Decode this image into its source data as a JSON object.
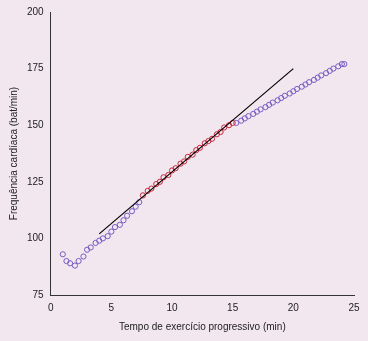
{
  "chart_data": {
    "type": "scatter",
    "x_label": "Tempo de exercício progressivo (min)",
    "y_label": "Frequência cardíaca (bat/min)",
    "xlim": [
      0,
      25
    ],
    "xticks": [
      0,
      5,
      10,
      15,
      20,
      25
    ],
    "ylim": [
      75,
      200
    ],
    "yticks": [
      75,
      100,
      125,
      150,
      175,
      200
    ],
    "grid": false,
    "series": [
      {
        "color": "#7a5cc4",
        "marker": "circle_open",
        "x": [
          1,
          1.3,
          1.6,
          2,
          2.3,
          2.7,
          3,
          3.3,
          3.7,
          4,
          4.3,
          4.7,
          5,
          5.3,
          5.7,
          6,
          6.3,
          6.7,
          7,
          7.3
        ],
        "values": [
          93,
          90,
          89,
          88,
          90,
          92,
          95,
          96,
          98,
          99,
          100,
          101,
          103,
          105,
          106,
          108,
          110,
          112,
          114,
          116
        ]
      },
      {
        "color": "#c8283c",
        "marker": "circle_open",
        "x": [
          7.6,
          8,
          8.3,
          8.7,
          9,
          9.3,
          9.7,
          10,
          10.3,
          10.7,
          11,
          11.3,
          11.7,
          12,
          12.3,
          12.7,
          13,
          13.3,
          13.7,
          14,
          14.3,
          14.7,
          15
        ],
        "values": [
          119,
          121,
          122,
          124,
          125,
          127,
          128,
          130,
          131,
          133,
          134,
          136,
          137,
          139,
          140,
          142,
          143,
          144,
          146,
          147,
          149,
          150,
          151
        ]
      },
      {
        "color": "#7a5cc4",
        "marker": "circle_open",
        "x": [
          15.3,
          15.7,
          16,
          16.3,
          16.7,
          17,
          17.3,
          17.7,
          18,
          18.3,
          18.7,
          19,
          19.3,
          19.7,
          20,
          20.3,
          20.7,
          21,
          21.3,
          21.7,
          22,
          22.3,
          22.7,
          23,
          23.3,
          23.7,
          24,
          24.2
        ],
        "values": [
          151,
          152,
          153,
          154,
          155,
          156,
          157,
          158,
          159,
          160,
          161,
          162,
          163,
          164,
          165,
          166,
          167,
          168,
          169,
          170,
          171,
          172,
          173,
          174,
          175,
          176,
          177,
          177
        ]
      },
      {
        "type": "line",
        "color": "#000000",
        "line_style": "solid",
        "x": [
          4,
          20
        ],
        "values": [
          102,
          175
        ]
      }
    ]
  }
}
